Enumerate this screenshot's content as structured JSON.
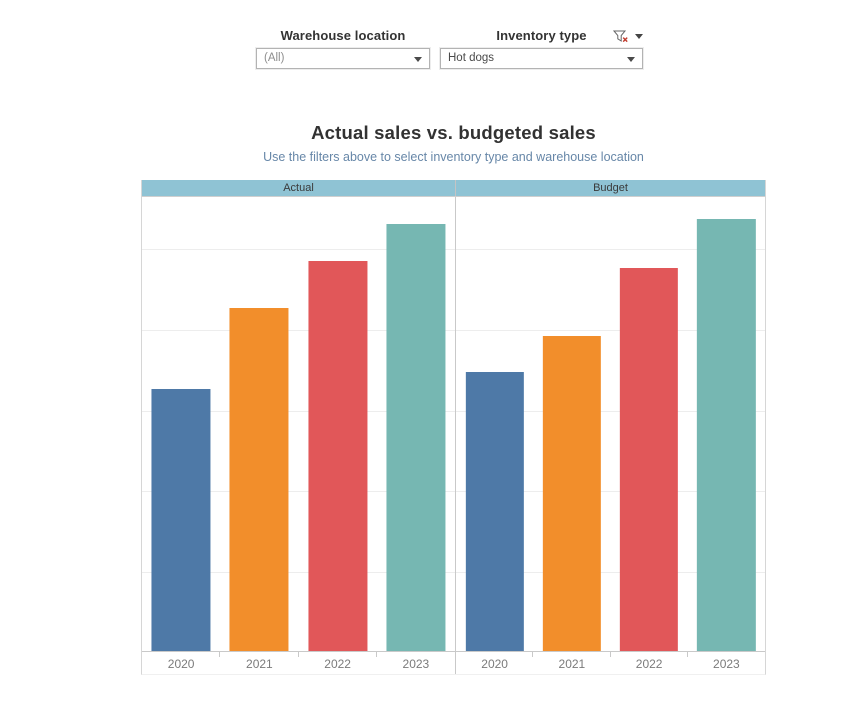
{
  "filters": {
    "warehouse": {
      "label": "Warehouse location",
      "value": "(All)"
    },
    "inventory": {
      "label": "Inventory type",
      "value": "Hot dogs"
    }
  },
  "chart_data": {
    "type": "bar",
    "title": "Actual sales vs. budgeted sales",
    "subtitle": "Use the filters above to select inventory type and warehouse location",
    "categories": [
      "2020",
      "2021",
      "2022",
      "2023"
    ],
    "panels": [
      {
        "label": "Actual",
        "values": [
          57.7,
          75.5,
          85.9,
          94.1
        ]
      },
      {
        "label": "Budget",
        "values": [
          61.5,
          69.4,
          84.4,
          95.2
        ]
      }
    ],
    "series_colors": {
      "2020": "#4e79a7",
      "2021": "#f28e2b",
      "2022": "#e15759",
      "2023": "#76b7b2"
    },
    "ylim": [
      0,
      100
    ],
    "xlabel": "",
    "ylabel": "",
    "gridlines": "horizontal-faint",
    "legend_position": "none"
  },
  "colors": {
    "header_band": "#8fc3d4",
    "panel_header_text": "#3a3a3a",
    "title_text": "#323232",
    "subtitle_text": "#6787a8",
    "axis_label_text": "#7b7b7b",
    "filter_clear_x": "#c0392b"
  }
}
